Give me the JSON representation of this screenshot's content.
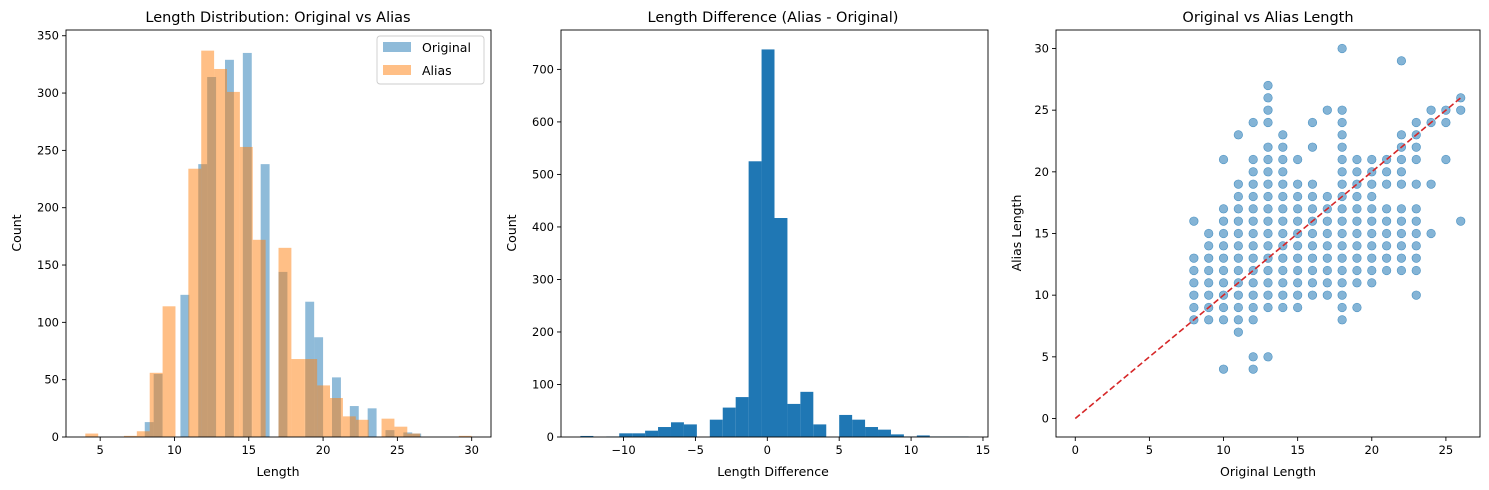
{
  "chart_data": [
    {
      "type": "bar",
      "subtype": "histogram-overlay",
      "title": "Length Distribution: Original vs Alias",
      "xlabel": "Length",
      "ylabel": "Count",
      "xlim": [
        2.7,
        31.3
      ],
      "ylim": [
        0,
        355
      ],
      "xticks": [
        5,
        10,
        15,
        20,
        25,
        30
      ],
      "yticks": [
        0,
        50,
        100,
        150,
        200,
        250,
        300,
        350
      ],
      "legend_position": "top-right",
      "grid": false,
      "series": [
        {
          "name": "Original",
          "color": "#1f77b4",
          "opacity": 0.5,
          "bin_start": 8,
          "bin_width": 0.6,
          "counts": [
            13,
            55,
            0,
            0,
            124,
            0,
            238,
            314,
            0,
            329,
            0,
            335,
            0,
            238,
            0,
            144,
            0,
            0,
            118,
            87,
            0,
            52,
            0,
            27,
            0,
            25,
            0,
            6,
            0,
            4,
            3
          ]
        },
        {
          "name": "Alias",
          "color": "#ff7f0e",
          "opacity": 0.5,
          "bin_start": 4,
          "bin_width": 0.8667,
          "counts": [
            3,
            0,
            0,
            1,
            5,
            56,
            114,
            0,
            234,
            337,
            321,
            301,
            253,
            172,
            0,
            165,
            68,
            68,
            45,
            34,
            18,
            15,
            0,
            16,
            9,
            3,
            0,
            0,
            0,
            1
          ]
        }
      ]
    },
    {
      "type": "bar",
      "subtype": "histogram",
      "title": "Length Difference (Alias - Original)",
      "xlabel": "Length Difference",
      "ylabel": "Count",
      "xlim": [
        -14.35,
        15.35
      ],
      "ylim": [
        0,
        775
      ],
      "xticks": [
        -10,
        -5,
        0,
        5,
        10,
        15
      ],
      "yticks": [
        0,
        100,
        200,
        300,
        400,
        500,
        600,
        700
      ],
      "grid": false,
      "series": [
        {
          "name": "",
          "color": "#1f77b4",
          "opacity": 1,
          "bin_start": -13,
          "bin_width": 0.9,
          "counts": [
            2,
            0,
            1,
            7,
            7,
            12,
            19,
            28,
            24,
            0,
            33,
            56,
            76,
            525,
            738,
            417,
            63,
            86,
            24,
            0,
            42,
            33,
            19,
            14,
            5,
            1,
            3,
            1,
            1,
            1
          ]
        }
      ]
    },
    {
      "type": "scatter",
      "title": "Original vs Alias Length",
      "xlabel": "Original Length",
      "ylabel": "Alias Length",
      "xlim": [
        -1.3,
        27.3
      ],
      "ylim": [
        -1.5,
        31.5
      ],
      "xticks": [
        0,
        5,
        10,
        15,
        20,
        25
      ],
      "yticks": [
        0,
        5,
        10,
        15,
        20,
        25,
        30
      ],
      "grid": false,
      "point_color": "#1f77b4",
      "point_opacity": 0.55,
      "reference_line": {
        "from": [
          0,
          0
        ],
        "to": [
          26,
          26
        ],
        "color": "#d62728",
        "style": "dashed"
      },
      "points": [
        [
          8,
          8
        ],
        [
          8,
          9
        ],
        [
          8,
          10
        ],
        [
          8,
          11
        ],
        [
          8,
          12
        ],
        [
          8,
          13
        ],
        [
          8,
          16
        ],
        [
          9,
          8
        ],
        [
          9,
          9
        ],
        [
          9,
          10
        ],
        [
          9,
          11
        ],
        [
          9,
          12
        ],
        [
          9,
          13
        ],
        [
          9,
          14
        ],
        [
          9,
          15
        ],
        [
          10,
          4
        ],
        [
          10,
          8
        ],
        [
          10,
          9
        ],
        [
          10,
          10
        ],
        [
          10,
          11
        ],
        [
          10,
          12
        ],
        [
          10,
          13
        ],
        [
          10,
          14
        ],
        [
          10,
          15
        ],
        [
          10,
          16
        ],
        [
          10,
          17
        ],
        [
          10,
          21
        ],
        [
          11,
          7
        ],
        [
          11,
          8
        ],
        [
          11,
          9
        ],
        [
          11,
          10
        ],
        [
          11,
          11
        ],
        [
          11,
          12
        ],
        [
          11,
          13
        ],
        [
          11,
          14
        ],
        [
          11,
          15
        ],
        [
          11,
          16
        ],
        [
          11,
          17
        ],
        [
          11,
          18
        ],
        [
          11,
          19
        ],
        [
          11,
          23
        ],
        [
          12,
          4
        ],
        [
          12,
          5
        ],
        [
          12,
          8
        ],
        [
          12,
          9
        ],
        [
          12,
          10
        ],
        [
          12,
          11
        ],
        [
          12,
          12
        ],
        [
          12,
          13
        ],
        [
          12,
          14
        ],
        [
          12,
          15
        ],
        [
          12,
          16
        ],
        [
          12,
          17
        ],
        [
          12,
          18
        ],
        [
          12,
          19
        ],
        [
          12,
          20
        ],
        [
          12,
          21
        ],
        [
          12,
          24
        ],
        [
          13,
          5
        ],
        [
          13,
          9
        ],
        [
          13,
          10
        ],
        [
          13,
          11
        ],
        [
          13,
          12
        ],
        [
          13,
          13
        ],
        [
          13,
          14
        ],
        [
          13,
          15
        ],
        [
          13,
          16
        ],
        [
          13,
          17
        ],
        [
          13,
          18
        ],
        [
          13,
          19
        ],
        [
          13,
          20
        ],
        [
          13,
          21
        ],
        [
          13,
          22
        ],
        [
          13,
          24
        ],
        [
          13,
          25
        ],
        [
          13,
          26
        ],
        [
          13,
          27
        ],
        [
          14,
          9
        ],
        [
          14,
          10
        ],
        [
          14,
          11
        ],
        [
          14,
          12
        ],
        [
          14,
          13
        ],
        [
          14,
          14
        ],
        [
          14,
          15
        ],
        [
          14,
          16
        ],
        [
          14,
          17
        ],
        [
          14,
          18
        ],
        [
          14,
          19
        ],
        [
          14,
          20
        ],
        [
          14,
          21
        ],
        [
          14,
          22
        ],
        [
          14,
          23
        ],
        [
          15,
          9
        ],
        [
          15,
          10
        ],
        [
          15,
          11
        ],
        [
          15,
          12
        ],
        [
          15,
          13
        ],
        [
          15,
          14
        ],
        [
          15,
          15
        ],
        [
          15,
          16
        ],
        [
          15,
          17
        ],
        [
          15,
          18
        ],
        [
          15,
          19
        ],
        [
          15,
          21
        ],
        [
          16,
          10
        ],
        [
          16,
          11
        ],
        [
          16,
          12
        ],
        [
          16,
          13
        ],
        [
          16,
          14
        ],
        [
          16,
          15
        ],
        [
          16,
          16
        ],
        [
          16,
          17
        ],
        [
          16,
          18
        ],
        [
          16,
          19
        ],
        [
          16,
          22
        ],
        [
          16,
          24
        ],
        [
          17,
          10
        ],
        [
          17,
          11
        ],
        [
          17,
          12
        ],
        [
          17,
          13
        ],
        [
          17,
          14
        ],
        [
          17,
          15
        ],
        [
          17,
          16
        ],
        [
          17,
          17
        ],
        [
          17,
          18
        ],
        [
          17,
          25
        ],
        [
          18,
          8
        ],
        [
          18,
          9
        ],
        [
          18,
          10
        ],
        [
          18,
          11
        ],
        [
          18,
          12
        ],
        [
          18,
          13
        ],
        [
          18,
          14
        ],
        [
          18,
          15
        ],
        [
          18,
          16
        ],
        [
          18,
          17
        ],
        [
          18,
          18
        ],
        [
          18,
          19
        ],
        [
          18,
          20
        ],
        [
          18,
          21
        ],
        [
          18,
          22
        ],
        [
          18,
          23
        ],
        [
          18,
          24
        ],
        [
          18,
          25
        ],
        [
          18,
          30
        ],
        [
          19,
          9
        ],
        [
          19,
          11
        ],
        [
          19,
          12
        ],
        [
          19,
          13
        ],
        [
          19,
          14
        ],
        [
          19,
          15
        ],
        [
          19,
          16
        ],
        [
          19,
          17
        ],
        [
          19,
          18
        ],
        [
          19,
          19
        ],
        [
          19,
          20
        ],
        [
          19,
          21
        ],
        [
          20,
          11
        ],
        [
          20,
          12
        ],
        [
          20,
          13
        ],
        [
          20,
          14
        ],
        [
          20,
          15
        ],
        [
          20,
          16
        ],
        [
          20,
          17
        ],
        [
          20,
          18
        ],
        [
          20,
          19
        ],
        [
          20,
          20
        ],
        [
          20,
          21
        ],
        [
          21,
          12
        ],
        [
          21,
          13
        ],
        [
          21,
          14
        ],
        [
          21,
          15
        ],
        [
          21,
          16
        ],
        [
          21,
          17
        ],
        [
          21,
          19
        ],
        [
          21,
          20
        ],
        [
          21,
          21
        ],
        [
          22,
          12
        ],
        [
          22,
          13
        ],
        [
          22,
          14
        ],
        [
          22,
          15
        ],
        [
          22,
          16
        ],
        [
          22,
          17
        ],
        [
          22,
          19
        ],
        [
          22,
          20
        ],
        [
          22,
          21
        ],
        [
          22,
          22
        ],
        [
          22,
          23
        ],
        [
          22,
          29
        ],
        [
          23,
          10
        ],
        [
          23,
          12
        ],
        [
          23,
          13
        ],
        [
          23,
          14
        ],
        [
          23,
          15
        ],
        [
          23,
          16
        ],
        [
          23,
          17
        ],
        [
          23,
          19
        ],
        [
          23,
          21
        ],
        [
          23,
          22
        ],
        [
          23,
          23
        ],
        [
          23,
          24
        ],
        [
          24,
          15
        ],
        [
          24,
          19
        ],
        [
          24,
          24
        ],
        [
          24,
          25
        ],
        [
          25,
          21
        ],
        [
          25,
          24
        ],
        [
          25,
          25
        ],
        [
          26,
          16
        ],
        [
          26,
          25
        ],
        [
          26,
          26
        ]
      ]
    }
  ]
}
